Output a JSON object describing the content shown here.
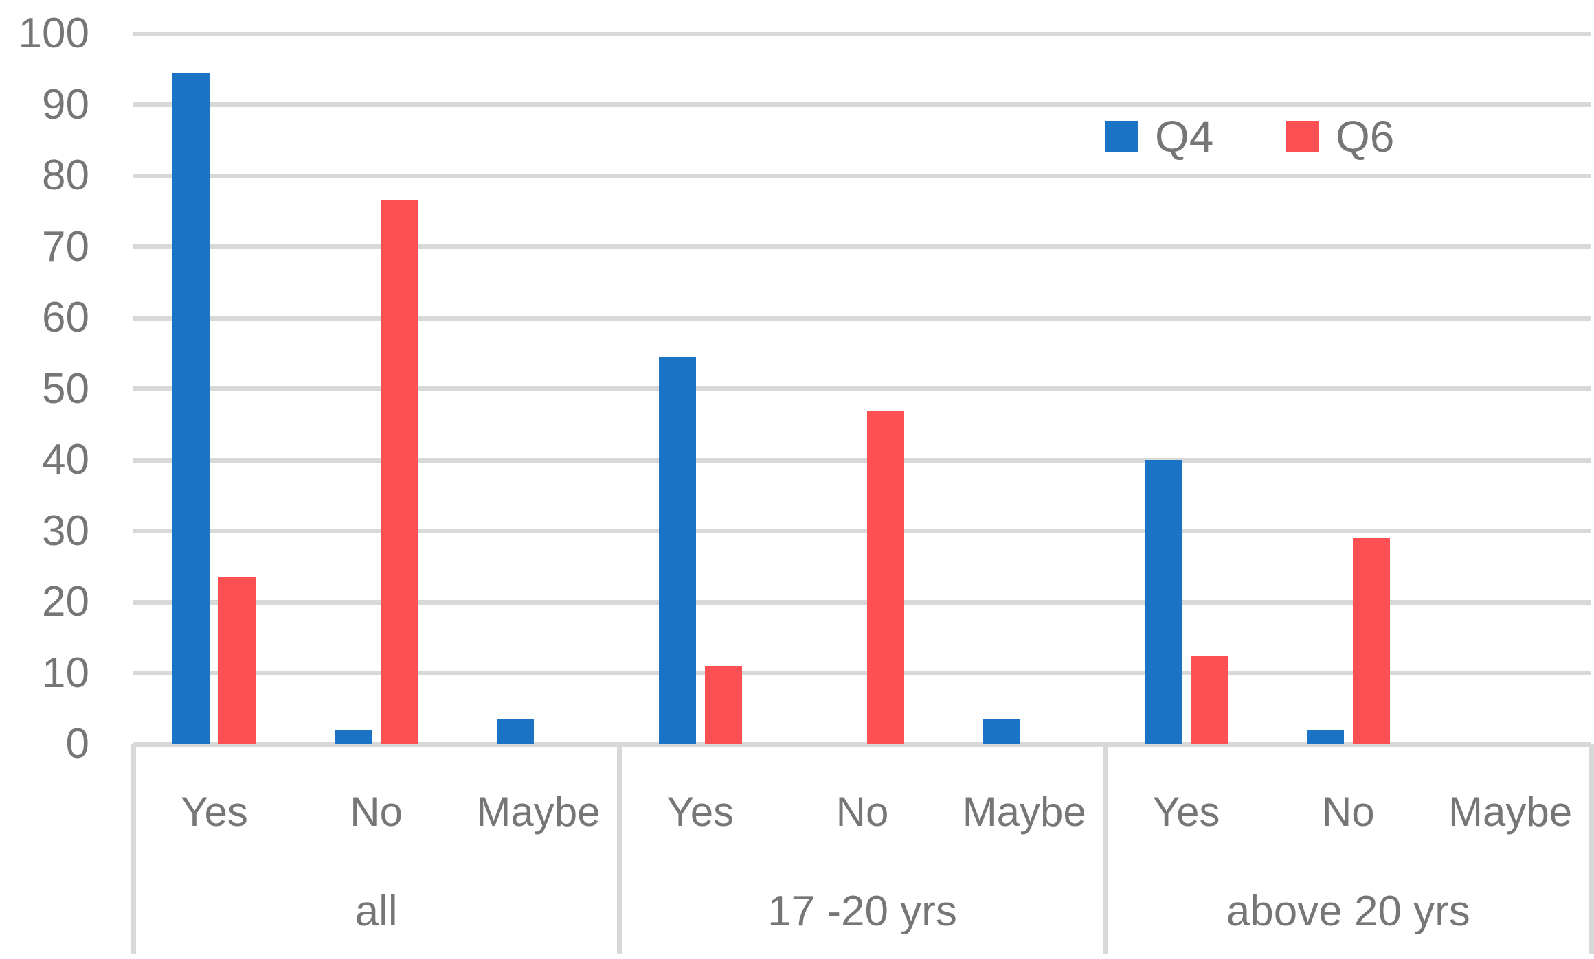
{
  "chart_data": {
    "type": "bar",
    "title": "",
    "groups": [
      {
        "label": "all",
        "categories": [
          "Yes",
          "No",
          "Maybe"
        ]
      },
      {
        "label": "17 -20 yrs",
        "categories": [
          "Yes",
          "No",
          "Maybe"
        ]
      },
      {
        "label": "above 20 yrs",
        "categories": [
          "Yes",
          "No",
          "Maybe"
        ]
      }
    ],
    "series": [
      {
        "name": "Q4",
        "color": "#1B73C6",
        "values": [
          94.5,
          2,
          3.5,
          54.5,
          0,
          3.5,
          40,
          2,
          0
        ]
      },
      {
        "name": "Q6",
        "color": "#FC5053",
        "values": [
          23.5,
          76.5,
          0,
          11,
          47,
          0,
          12.5,
          29,
          0
        ]
      }
    ],
    "y_ticks": [
      0,
      10,
      20,
      30,
      40,
      50,
      60,
      70,
      80,
      90,
      100
    ],
    "ylim": [
      0,
      100
    ],
    "grid": "horizontal",
    "legend_position": "top-right"
  },
  "legend": {
    "items": [
      {
        "label": "Q4",
        "color": "#1B73C6"
      },
      {
        "label": "Q6",
        "color": "#FC5053"
      }
    ]
  },
  "colors": {
    "gridline": "#D8D8D8",
    "axis_text": "#767676",
    "background": "#FFFFFF"
  }
}
